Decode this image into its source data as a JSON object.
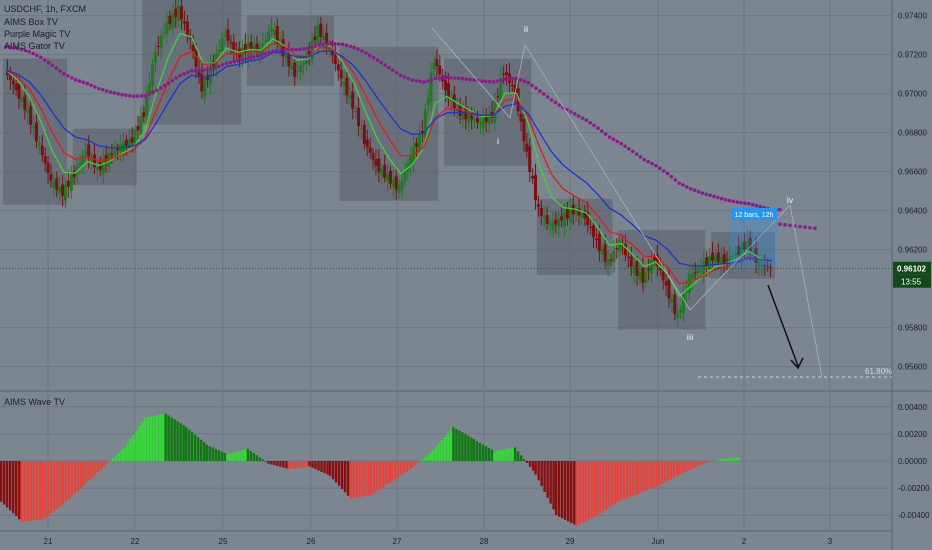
{
  "header": {
    "symbol_line": "USDCHF, 1h, FXCM",
    "indicators": [
      "AIMS Box TV",
      "Purple Magic TV",
      "AIMS Gator TV"
    ],
    "oscillator_title": "AIMS Wave TV"
  },
  "price_axis": {
    "ticks": [
      "0.97400",
      "0.97200",
      "0.97000",
      "0.96800",
      "0.96600",
      "0.96400",
      "0.96200",
      "0.95800",
      "0.95600"
    ],
    "current_price": "0.96102",
    "countdown": "13:55"
  },
  "osc_axis": {
    "ticks": [
      "0.00400",
      "0.00200",
      "0.00000",
      "-0.00200",
      "-0.00400"
    ]
  },
  "time_axis": {
    "labels": [
      "21",
      "22",
      "25",
      "26",
      "27",
      "28",
      "29",
      "Jun",
      "2",
      "3"
    ]
  },
  "annotations": {
    "wave_labels": [
      "i",
      "ii",
      "iii",
      "iv"
    ],
    "fib_label": "61.80%",
    "measure_label": "12 bars, 12h"
  },
  "colors": {
    "background": "#7b8691",
    "grid": "#6c7782",
    "bull_candle": "#1f7a1f",
    "bear_candle": "#7a1010",
    "box_fill": "#5c636c",
    "ma_blue": "#1d33d8",
    "ma_red": "#e11b1b",
    "ma_green": "#3fd33f",
    "dots_purple": "#8c1a8c",
    "osc_green": "#2ee02e",
    "osc_red": "#e8433a",
    "osc_dark_red": "#8b0d0d",
    "osc_dark_green": "#0d7a0d",
    "price_label_bg": "#0f4a17",
    "measure_bg": "#2196f3"
  },
  "chart_data": {
    "type": "candlestick",
    "description_series": [
      {
        "name": "price",
        "values": [
          0.9712,
          0.9702,
          0.969,
          0.9673,
          0.9655,
          0.9649,
          0.9659,
          0.9671,
          0.9661,
          0.9668,
          0.9673,
          0.9676,
          0.969,
          0.9722,
          0.9736,
          0.9743,
          0.9727,
          0.9702,
          0.9716,
          0.9731,
          0.9719,
          0.9724,
          0.9722,
          0.9734,
          0.9721,
          0.971,
          0.9718,
          0.9733,
          0.9723,
          0.9708,
          0.9694,
          0.9676,
          0.9663,
          0.9657,
          0.9651,
          0.9668,
          0.9681,
          0.9718,
          0.9702,
          0.9691,
          0.9688,
          0.9685,
          0.9689,
          0.9712,
          0.97,
          0.9669,
          0.964,
          0.9632,
          0.9636,
          0.964,
          0.9637,
          0.9624,
          0.9613,
          0.9624,
          0.9612,
          0.9605,
          0.9616,
          0.9601,
          0.9585,
          0.9606,
          0.9611,
          0.9616,
          0.9614,
          0.9618,
          0.9623,
          0.9612,
          0.9611
        ]
      }
    ],
    "oscillator": {
      "name": "AIMS Wave TV",
      "values": [
        -0.003,
        -0.0045,
        -0.0043,
        -0.0032,
        -0.0018,
        -0.0004,
        0.001,
        0.0032,
        0.0035,
        0.0025,
        0.0012,
        0.0005,
        0.0009,
        -0.0002,
        -0.0006,
        -0.0004,
        -0.0011,
        -0.0028,
        -0.0025,
        -0.0015,
        -0.0005,
        0.0008,
        0.0025,
        0.0016,
        0.0007,
        0.001,
        -0.001,
        -0.004,
        -0.0048,
        -0.004,
        -0.003,
        -0.0024,
        -0.0018,
        -0.001,
        -0.0003,
        0.0001,
        0.0003
      ]
    },
    "ylim": [
      0.9548,
      0.9748
    ],
    "osc_ylim": [
      -0.0045,
      0.0045
    ]
  }
}
